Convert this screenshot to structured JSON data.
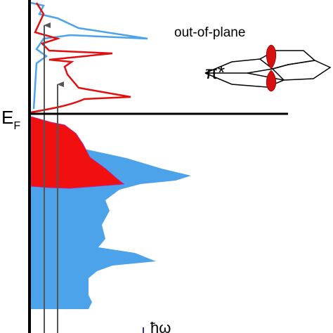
{
  "annotations": {
    "orbital_type": "out-of-plane",
    "orbital": "π*",
    "fermi_level": "E",
    "fermi_subscript": "F",
    "photon": "ħω"
  }
}
